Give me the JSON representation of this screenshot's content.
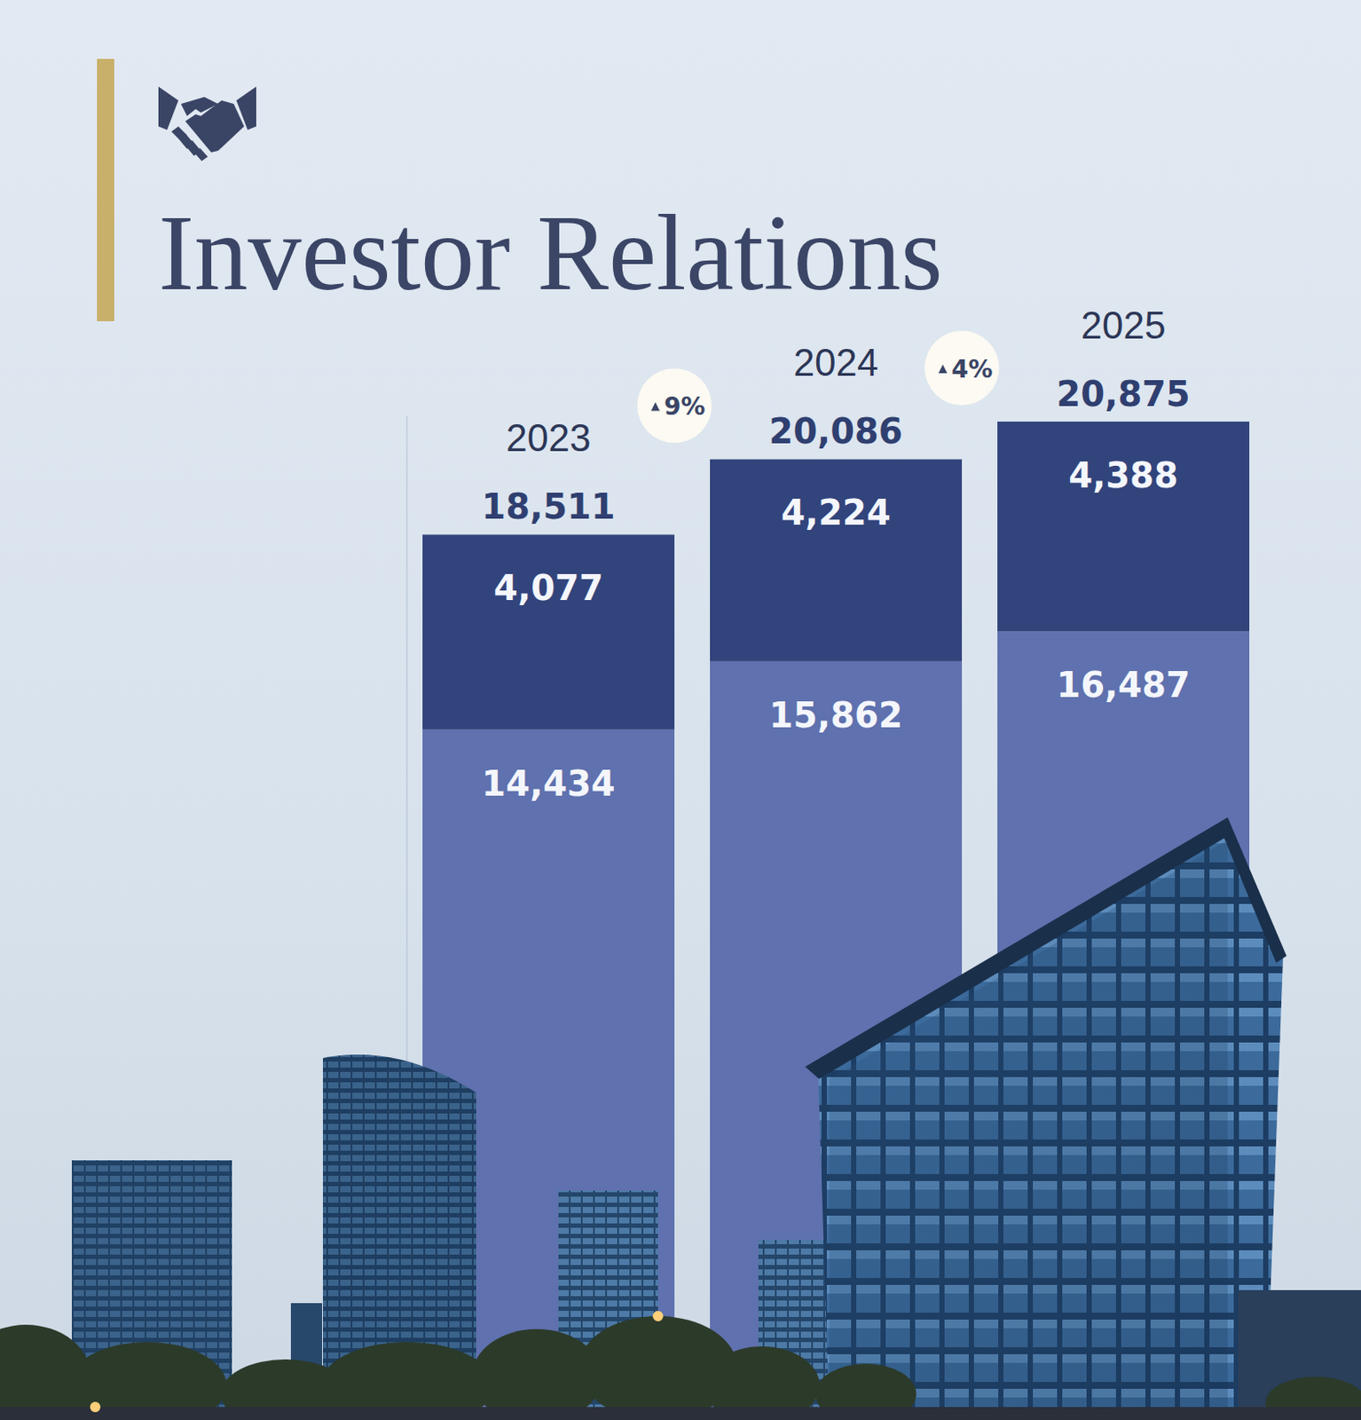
{
  "chart_data": {
    "type": "bar",
    "title": "Investor Relations",
    "categories": [
      "2023",
      "2024",
      "2025"
    ],
    "stacked": true,
    "data_labels": true,
    "tick_labels": false,
    "ylim": [
      0,
      21000
    ],
    "series": [
      {
        "color": "#5f71ae",
        "values": [
          14434,
          15862,
          16487
        ],
        "value_labels": [
          "14,434",
          "15,862",
          "16,487"
        ]
      },
      {
        "color": "#32447c",
        "values": [
          4077,
          4224,
          4388
        ],
        "value_labels": [
          "4,077",
          "4,224",
          "4,388"
        ]
      }
    ],
    "totals": [
      18511,
      20086,
      20875
    ],
    "total_labels": [
      "18,511",
      "20,086",
      "20,875"
    ],
    "annotations": [
      "9%",
      "4%"
    ]
  }
}
